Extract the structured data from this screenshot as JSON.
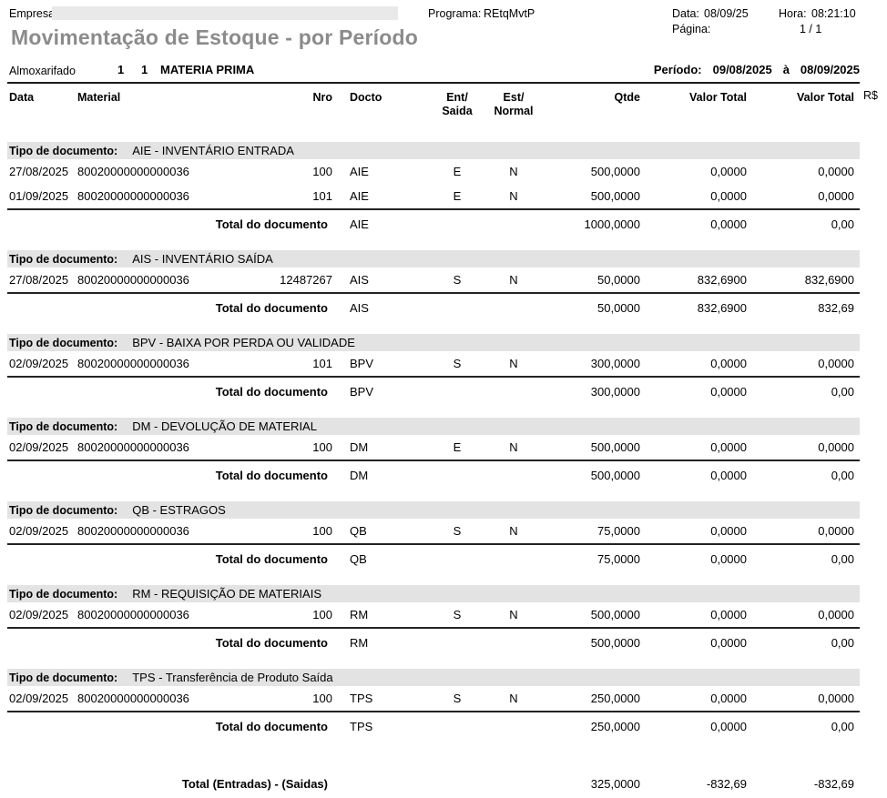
{
  "header": {
    "empresa_label": "Empresa:",
    "programa_label": "Programa:",
    "programa_value": "REtqMvtP",
    "data_label": "Data:",
    "data_value": "08/09/25",
    "hora_label": "Hora:",
    "hora_value": "08:21:10",
    "pagina_label": "Página:",
    "pagina_value": "1 / 1",
    "title": "Movimentação de Estoque - por Período",
    "title_color": "#8b8b8b"
  },
  "filter": {
    "almoxarifado_label": "Almoxarifado",
    "almoxarifado_code1": "1",
    "almoxarifado_code2": "1",
    "almoxarifado_name": "MATERIA PRIMA",
    "periodo_label": "Período:",
    "periodo_from": "09/08/2025",
    "periodo_to_word": "à",
    "periodo_to": "08/09/2025"
  },
  "table": {
    "rs_header": "R$",
    "tipo_label": "Tipo de documento:",
    "total_label": "Total do documento",
    "section_bar_color": "#e3e3e3",
    "columns": [
      {
        "key": "data",
        "l1": "Data"
      },
      {
        "key": "material",
        "l1": "Material"
      },
      {
        "key": "nro",
        "l1": "Nro"
      },
      {
        "key": "docto",
        "l1": "Docto"
      },
      {
        "key": "ent",
        "l1": "Ent/",
        "l2": "Saida"
      },
      {
        "key": "est",
        "l1": "Est/",
        "l2": "Normal"
      },
      {
        "key": "qtde",
        "l1": "Qtde"
      },
      {
        "key": "vt1",
        "l1": "Valor Total"
      },
      {
        "key": "vt2",
        "l1": "Valor Total"
      }
    ],
    "sections": [
      {
        "tipo": "AIE - INVENTÁRIO ENTRADA",
        "rows": [
          {
            "data": "27/08/2025",
            "material": "80020000000000036",
            "nro": "100",
            "docto": "AIE",
            "ent": "E",
            "est": "N",
            "qtde": "500,0000",
            "vt1": "0,0000",
            "vt2": "0,0000"
          },
          {
            "data": "01/09/2025",
            "material": "80020000000000036",
            "nro": "101",
            "docto": "AIE",
            "ent": "E",
            "est": "N",
            "qtde": "500,0000",
            "vt1": "0,0000",
            "vt2": "0,0000"
          }
        ],
        "total": {
          "docto": "AIE",
          "qtde": "1000,0000",
          "vt1": "0,0000",
          "vt2": "0,00"
        }
      },
      {
        "tipo": "AIS - INVENTÁRIO SAÍDA",
        "rows": [
          {
            "data": "27/08/2025",
            "material": "80020000000000036",
            "nro": "12487267",
            "docto": "AIS",
            "ent": "S",
            "est": "N",
            "qtde": "50,0000",
            "vt1": "832,6900",
            "vt2": "832,6900"
          }
        ],
        "total": {
          "docto": "AIS",
          "qtde": "50,0000",
          "vt1": "832,6900",
          "vt2": "832,69"
        }
      },
      {
        "tipo": "BPV - BAIXA POR PERDA OU VALIDADE",
        "rows": [
          {
            "data": "02/09/2025",
            "material": "80020000000000036",
            "nro": "101",
            "docto": "BPV",
            "ent": "S",
            "est": "N",
            "qtde": "300,0000",
            "vt1": "0,0000",
            "vt2": "0,0000"
          }
        ],
        "total": {
          "docto": "BPV",
          "qtde": "300,0000",
          "vt1": "0,0000",
          "vt2": "0,00"
        }
      },
      {
        "tipo": "DM - DEVOLUÇÃO DE MATERIAL",
        "rows": [
          {
            "data": "02/09/2025",
            "material": "80020000000000036",
            "nro": "100",
            "docto": "DM",
            "ent": "E",
            "est": "N",
            "qtde": "500,0000",
            "vt1": "0,0000",
            "vt2": "0,0000"
          }
        ],
        "total": {
          "docto": "DM",
          "qtde": "500,0000",
          "vt1": "0,0000",
          "vt2": "0,00"
        }
      },
      {
        "tipo": "QB - ESTRAGOS",
        "rows": [
          {
            "data": "02/09/2025",
            "material": "80020000000000036",
            "nro": "100",
            "docto": "QB",
            "ent": "S",
            "est": "N",
            "qtde": "75,0000",
            "vt1": "0,0000",
            "vt2": "0,0000"
          }
        ],
        "total": {
          "docto": "QB",
          "qtde": "75,0000",
          "vt1": "0,0000",
          "vt2": "0,00"
        }
      },
      {
        "tipo": "RM - REQUISIÇÃO DE MATERIAIS",
        "rows": [
          {
            "data": "02/09/2025",
            "material": "80020000000000036",
            "nro": "100",
            "docto": "RM",
            "ent": "S",
            "est": "N",
            "qtde": "500,0000",
            "vt1": "0,0000",
            "vt2": "0,0000"
          }
        ],
        "total": {
          "docto": "RM",
          "qtde": "500,0000",
          "vt1": "0,0000",
          "vt2": "0,00"
        }
      },
      {
        "tipo": "TPS - Transferência de Produto Saída",
        "rows": [
          {
            "data": "02/09/2025",
            "material": "80020000000000036",
            "nro": "100",
            "docto": "TPS",
            "ent": "S",
            "est": "N",
            "qtde": "250,0000",
            "vt1": "0,0000",
            "vt2": "0,0000"
          }
        ],
        "total": {
          "docto": "TPS",
          "qtde": "250,0000",
          "vt1": "0,0000",
          "vt2": "0,00"
        }
      }
    ],
    "grand_total": {
      "label": "Total (Entradas) - (Saidas)",
      "qtde": "325,0000",
      "vt1": "-832,69",
      "vt2": "-832,69"
    }
  }
}
